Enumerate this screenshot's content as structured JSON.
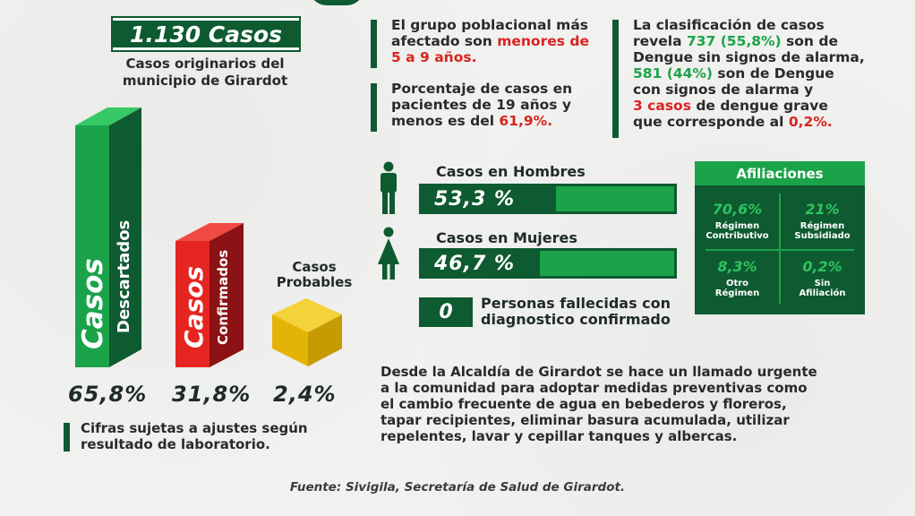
{
  "header": {
    "total_cases": "1.130 Casos",
    "subtitle_line1": "Casos originarios del",
    "subtitle_line2": "municipio de Girardot"
  },
  "info_blocks": {
    "group": {
      "l1": "El grupo poblacional más",
      "l2a": "afectado son ",
      "l2b": "menores de",
      "l3": "5 a 9 años."
    },
    "percentage": {
      "l1": "Porcentaje de casos en",
      "l2": "pacientes de 19 años y",
      "l3a": "menos es del ",
      "l3b": "61,9%."
    },
    "classification": {
      "l1": "La clasificación de casos",
      "l2a": "revela ",
      "l2b": "737 (55,8%)",
      "l2c": " son de",
      "l3": "Dengue sin signos de alarma,",
      "l4a": "581 (44%)",
      "l4b": " son de Dengue",
      "l5": "con signos de alarma y",
      "l6a": "3 casos",
      "l6b": " de dengue grave",
      "l7a": "que corresponde al ",
      "l7b": "0,2%."
    }
  },
  "cases_bars": {
    "discarded": {
      "big": "Casos",
      "small": "Descartados",
      "percent": "65,8%",
      "value": 65.8
    },
    "confirmed": {
      "big": "Casos",
      "small": "Confirmados",
      "percent": "31,8%",
      "value": 31.8
    },
    "probable": {
      "label_l1": "Casos",
      "label_l2": "Probables",
      "percent": "2,4%",
      "value": 2.4
    }
  },
  "gender": {
    "men": {
      "label": "Casos en Hombres",
      "percent_text": "53,3 %",
      "value": 53.3,
      "icon": "male-person-icon"
    },
    "women": {
      "label": "Casos en Mujeres",
      "percent_text": "46,7 %",
      "value": 46.7,
      "icon": "female-person-icon"
    }
  },
  "deaths": {
    "count": "0",
    "l1": "Personas fallecidas con",
    "l2": "diagnostico confirmado"
  },
  "affiliations": {
    "title": "Afiliaciones",
    "items": [
      {
        "value": "70,6%",
        "l1": "Régimen",
        "l2": "Contributivo"
      },
      {
        "value": "21%",
        "l1": "Régimen",
        "l2": "Subsidiado"
      },
      {
        "value": "8,3%",
        "l1": "Otro",
        "l2": "Régimen"
      },
      {
        "value": "0,2%",
        "l1": "Sin",
        "l2": "Afiliación"
      }
    ]
  },
  "disclaimer": {
    "l1": "Cifras sujetas a ajustes según",
    "l2": "resultado de laboratorio."
  },
  "call_to_action": {
    "l1": "Desde la Alcaldía de Girardot se hace un llamado urgente",
    "l2": "a la comunidad para adoptar medidas preventivas como",
    "l3": "el cambio frecuente de agua en bebederos y floreros,",
    "l4": "tapar recipientes, eliminar basura acumulada, utilizar",
    "l5": "repelentes, lavar y cepillar tanques y albercas."
  },
  "source": "Fuente: Sivigila, Secretaría de Salud de Girardot.",
  "colors": {
    "dark_green": "#0e5a31",
    "bright_green": "#1ba34a",
    "red": "#d9231f",
    "yellow": "#f2c20a"
  }
}
